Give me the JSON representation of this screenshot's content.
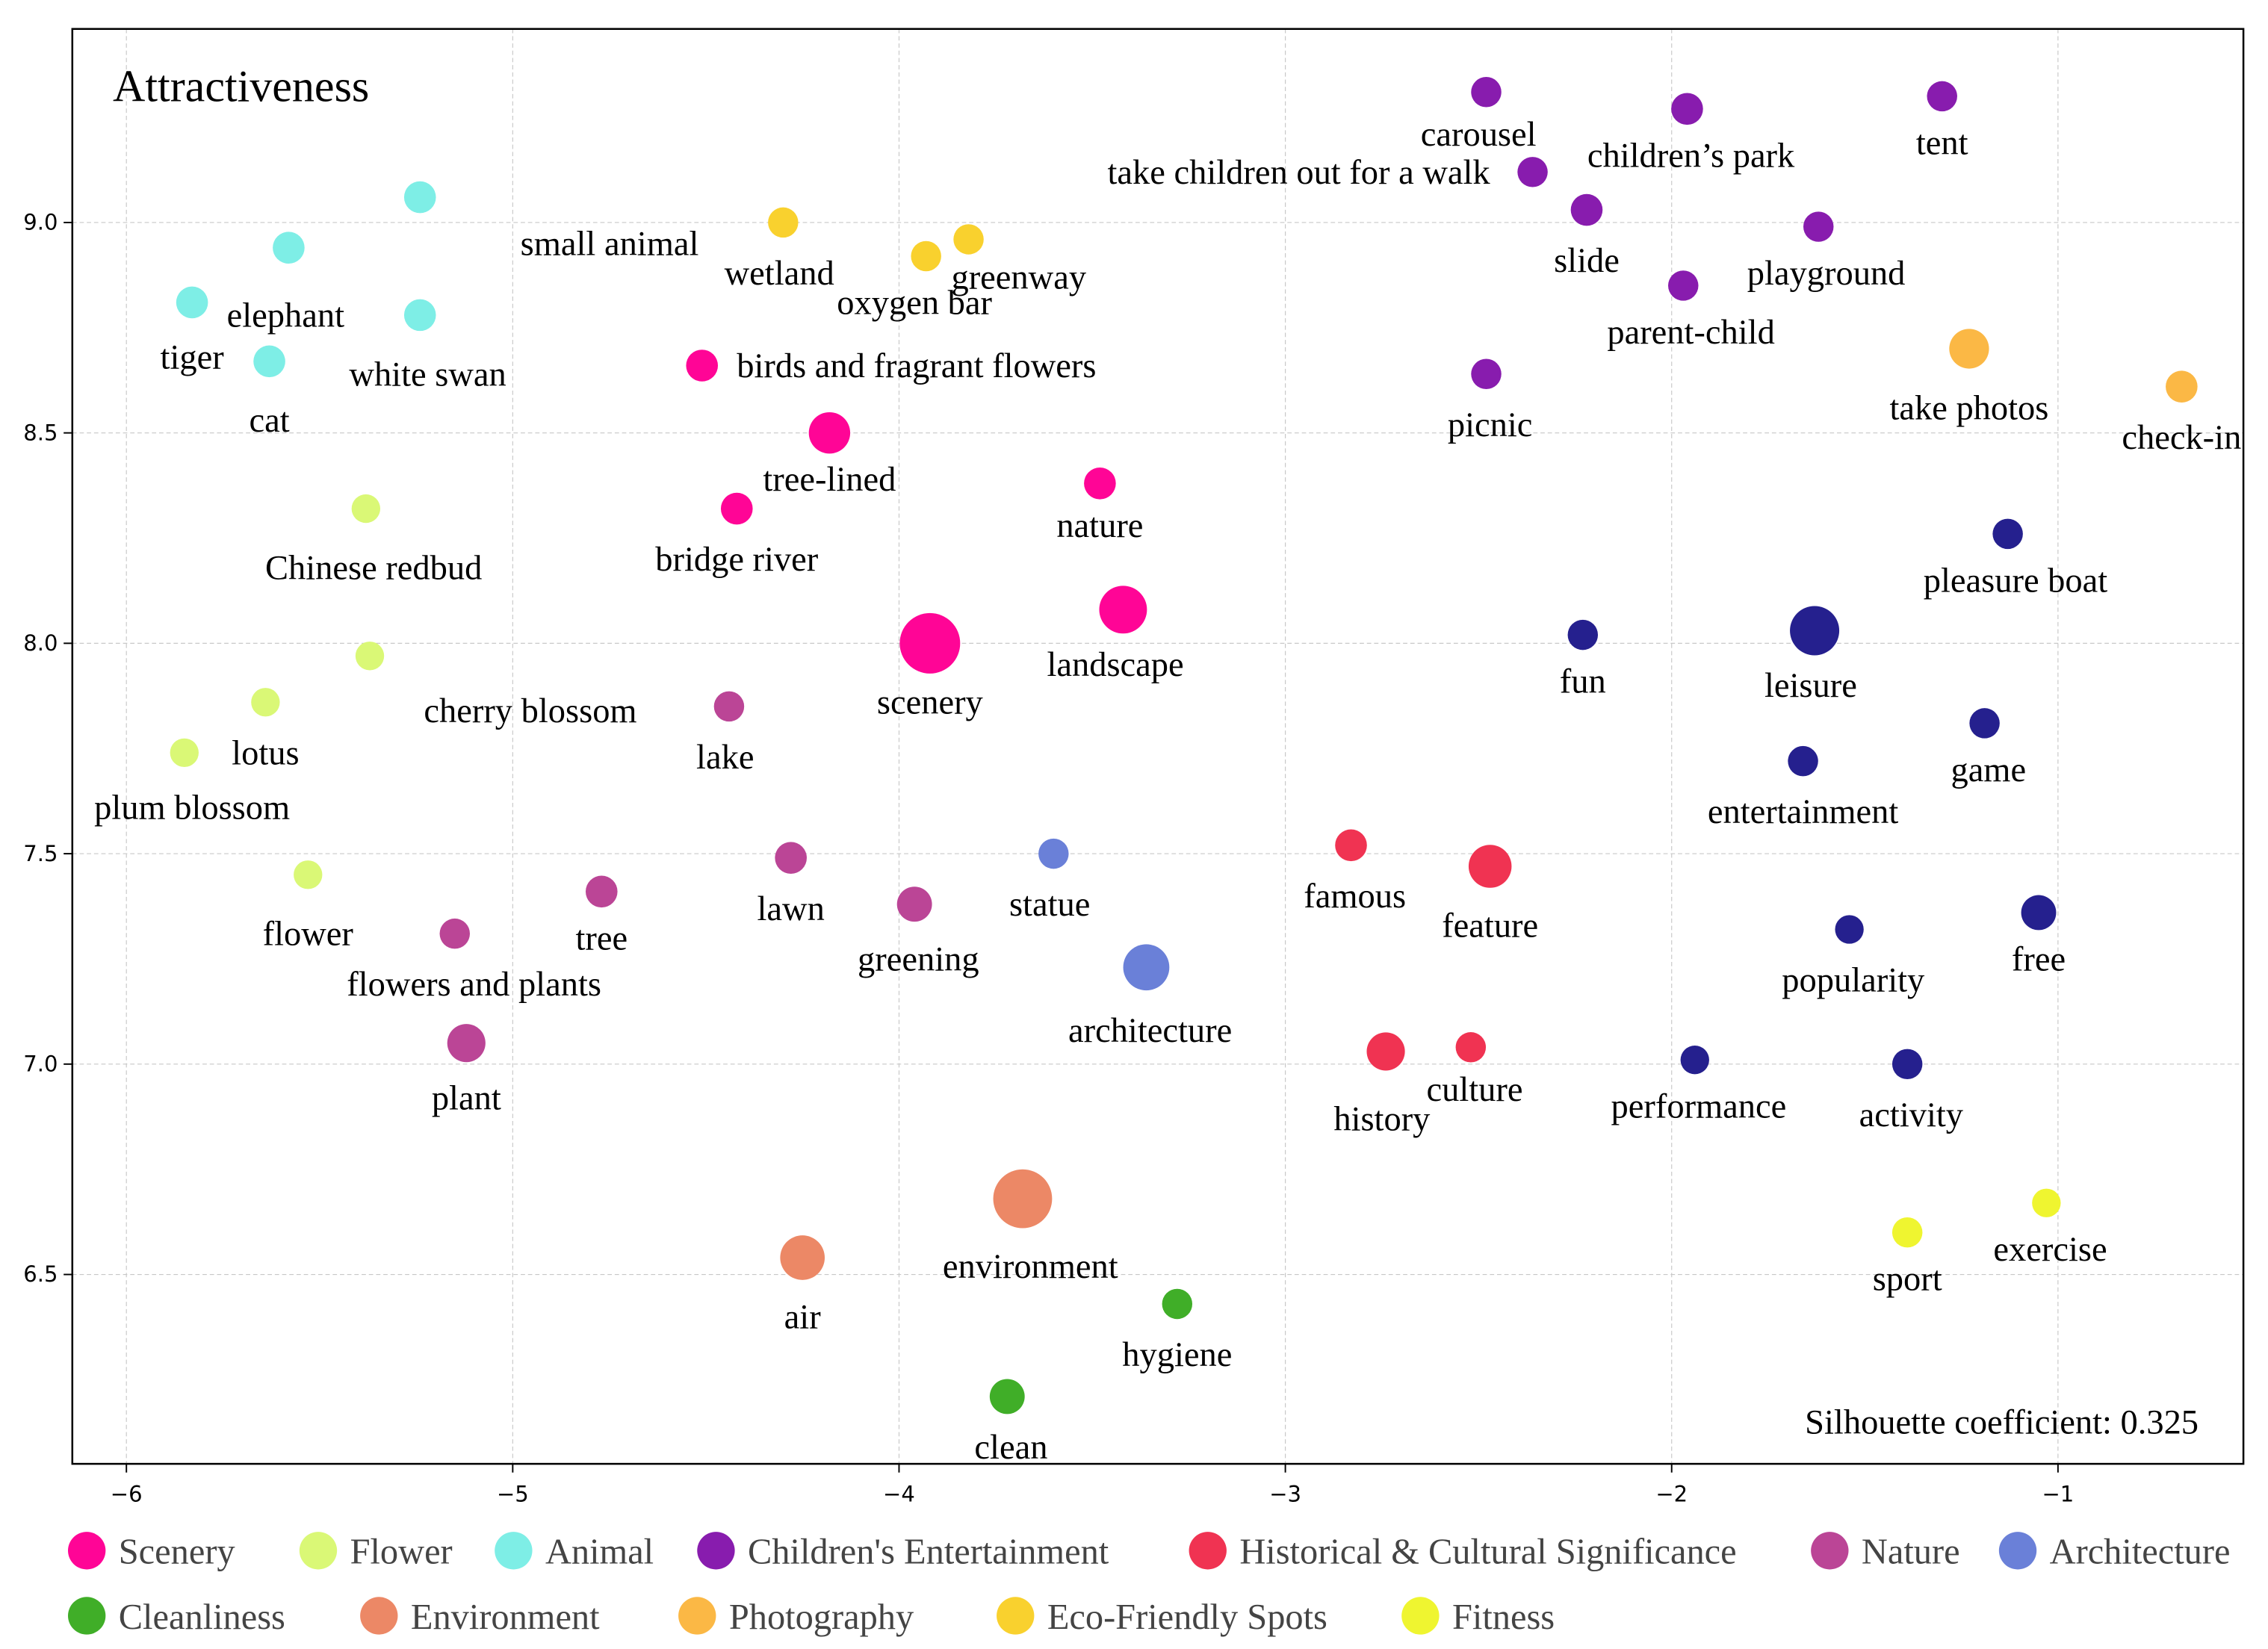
{
  "chart_data": {
    "type": "scatter",
    "title": "Attractiveness",
    "annotation": "Silhouette coefficient: 0.325",
    "xlabel": "",
    "ylabel": "",
    "xlim": [
      -6.14,
      -0.52
    ],
    "ylim": [
      6.05,
      9.46
    ],
    "xticks": [
      -6,
      -5,
      -4,
      -3,
      -2,
      -1
    ],
    "xtick_labels": [
      "−6",
      "−5",
      "−4",
      "−3",
      "−2",
      "−1"
    ],
    "yticks": [
      6.5,
      7.0,
      7.5,
      8.0,
      8.5,
      9.0
    ],
    "ytick_labels": [
      "6.5",
      "7.0",
      "7.5",
      "8.0",
      "8.5",
      "9.0"
    ],
    "grid": true,
    "legend_position": "bottom",
    "categories": [
      {
        "name": "Scenery",
        "color": "#FF0596"
      },
      {
        "name": "Flower",
        "color": "#DAF876"
      },
      {
        "name": "Animal",
        "color": "#7EEEE6"
      },
      {
        "name": "Children's Entertainment",
        "color": "#881CAE"
      },
      {
        "name": "Historical & Cultural Significance",
        "color": "#F03352"
      },
      {
        "name": "Nature",
        "color": "#BB4596"
      },
      {
        "name": "Architecture",
        "color": "#6A80D8"
      },
      {
        "name": "Cleanliness",
        "color": "#40AE28"
      },
      {
        "name": "Environment",
        "color": "#EC8866"
      },
      {
        "name": "Photography",
        "color": "#FBB845"
      },
      {
        "name": "Eco-Friendly Spots",
        "color": "#F9D12E"
      },
      {
        "name": "Fitness",
        "color": "#EFF530"
      },
      {
        "name": "",
        "color": "#25208E"
      }
    ],
    "points": [
      {
        "label": "small animal",
        "category": "Animal",
        "x": -5.24,
        "y": 9.06,
        "size": 1,
        "lx": 0.26,
        "ly": -0.11,
        "anchor": "start"
      },
      {
        "label": "elephant",
        "category": "Animal",
        "x": -5.58,
        "y": 8.94,
        "size": 1,
        "lx": -0.16,
        "ly": -0.16,
        "anchor": "start"
      },
      {
        "label": "tiger",
        "category": "Animal",
        "x": -5.83,
        "y": 8.81,
        "size": 1,
        "lx": 0,
        "ly": -0.13,
        "anchor": "middle"
      },
      {
        "label": "white swan",
        "category": "Animal",
        "x": -5.24,
        "y": 8.78,
        "size": 1,
        "lx": 0.02,
        "ly": -0.14,
        "anchor": "middle"
      },
      {
        "label": "cat",
        "category": "Animal",
        "x": -5.63,
        "y": 8.67,
        "size": 1,
        "lx": 0,
        "ly": -0.14,
        "anchor": "middle"
      },
      {
        "label": "Chinese redbud",
        "category": "Flower",
        "x": -5.38,
        "y": 8.32,
        "size": 0.9,
        "lx": 0.02,
        "ly": -0.14,
        "anchor": "middle"
      },
      {
        "label": "cherry blossom",
        "category": "Flower",
        "x": -5.37,
        "y": 7.97,
        "size": 0.9,
        "lx": 0.14,
        "ly": -0.13,
        "anchor": "start"
      },
      {
        "label": "lotus",
        "category": "Flower",
        "x": -5.64,
        "y": 7.86,
        "size": 0.9,
        "lx": 0,
        "ly": -0.12,
        "anchor": "middle"
      },
      {
        "label": "plum blossom",
        "category": "Flower",
        "x": -5.85,
        "y": 7.74,
        "size": 0.9,
        "lx": 0.02,
        "ly": -0.13,
        "anchor": "middle"
      },
      {
        "label": "flower",
        "category": "Flower",
        "x": -5.53,
        "y": 7.45,
        "size": 0.9,
        "lx": 0,
        "ly": -0.14,
        "anchor": "middle"
      },
      {
        "label": "birds and fragrant flowers",
        "category": "Scenery",
        "x": -4.51,
        "y": 8.66,
        "size": 1,
        "lx": 0.09,
        "ly": 0,
        "anchor": "start"
      },
      {
        "label": "tree-lined",
        "category": "Scenery",
        "x": -4.18,
        "y": 8.5,
        "size": 1.3,
        "lx": 0,
        "ly": -0.11,
        "anchor": "middle"
      },
      {
        "label": "bridge river",
        "category": "Scenery",
        "x": -4.42,
        "y": 8.32,
        "size": 1,
        "lx": 0,
        "ly": -0.12,
        "anchor": "middle"
      },
      {
        "label": "nature",
        "category": "Scenery",
        "x": -3.48,
        "y": 8.38,
        "size": 1,
        "lx": 0,
        "ly": -0.1,
        "anchor": "middle"
      },
      {
        "label": "scenery",
        "category": "Scenery",
        "x": -3.92,
        "y": 8.0,
        "size": 1.9,
        "lx": 0,
        "ly": -0.14,
        "anchor": "middle"
      },
      {
        "label": "landscape",
        "category": "Scenery",
        "x": -3.42,
        "y": 8.08,
        "size": 1.5,
        "lx": -0.02,
        "ly": -0.13,
        "anchor": "middle"
      },
      {
        "label": "wetland",
        "category": "Eco-Friendly Spots",
        "x": -4.3,
        "y": 9.0,
        "size": 0.95,
        "lx": -0.01,
        "ly": -0.12,
        "anchor": "middle"
      },
      {
        "label": "oxygen bar",
        "category": "Eco-Friendly Spots",
        "x": -3.93,
        "y": 8.92,
        "size": 0.95,
        "lx": -0.03,
        "ly": -0.11,
        "anchor": "middle"
      },
      {
        "label": "greenway",
        "category": "Eco-Friendly Spots",
        "x": -3.82,
        "y": 8.96,
        "size": 0.95,
        "lx": 0.13,
        "ly": -0.09,
        "anchor": "middle"
      },
      {
        "label": "lake",
        "category": "Nature",
        "x": -4.44,
        "y": 7.85,
        "size": 0.95,
        "lx": -0.01,
        "ly": -0.12,
        "anchor": "middle"
      },
      {
        "label": "lawn",
        "category": "Nature",
        "x": -4.28,
        "y": 7.49,
        "size": 1,
        "lx": 0,
        "ly": -0.12,
        "anchor": "middle"
      },
      {
        "label": "greening",
        "category": "Nature",
        "x": -3.96,
        "y": 7.38,
        "size": 1.1,
        "lx": 0.01,
        "ly": -0.13,
        "anchor": "middle"
      },
      {
        "label": "tree",
        "category": "Nature",
        "x": -4.77,
        "y": 7.41,
        "size": 1,
        "lx": 0,
        "ly": -0.11,
        "anchor": "middle"
      },
      {
        "label": "flowers and plants",
        "category": "Nature",
        "x": -5.15,
        "y": 7.31,
        "size": 0.95,
        "lx": 0.05,
        "ly": -0.12,
        "anchor": "middle"
      },
      {
        "label": "plant",
        "category": "Nature",
        "x": -5.12,
        "y": 7.05,
        "size": 1.2,
        "lx": 0,
        "ly": -0.13,
        "anchor": "middle"
      },
      {
        "label": "statue",
        "category": "Architecture",
        "x": -3.6,
        "y": 7.5,
        "size": 0.95,
        "lx": -0.01,
        "ly": -0.12,
        "anchor": "middle"
      },
      {
        "label": "architecture",
        "category": "Architecture",
        "x": -3.36,
        "y": 7.23,
        "size": 1.45,
        "lx": 0.01,
        "ly": -0.15,
        "anchor": "middle"
      },
      {
        "label": "famous",
        "category": "Historical & Cultural Significance",
        "x": -2.83,
        "y": 7.52,
        "size": 1,
        "lx": 0.01,
        "ly": -0.12,
        "anchor": "middle"
      },
      {
        "label": "feature",
        "category": "Historical & Cultural Significance",
        "x": -2.47,
        "y": 7.47,
        "size": 1.35,
        "lx": 0,
        "ly": -0.14,
        "anchor": "middle"
      },
      {
        "label": "history",
        "category": "Historical & Cultural Significance",
        "x": -2.74,
        "y": 7.03,
        "size": 1.2,
        "lx": -0.01,
        "ly": -0.16,
        "anchor": "middle"
      },
      {
        "label": "culture",
        "category": "Historical & Cultural Significance",
        "x": -2.52,
        "y": 7.04,
        "size": 0.95,
        "lx": 0.01,
        "ly": -0.1,
        "anchor": "middle"
      },
      {
        "label": "carousel",
        "category": "Children's Entertainment",
        "x": -2.48,
        "y": 9.31,
        "size": 0.95,
        "lx": -0.02,
        "ly": -0.1,
        "anchor": "middle"
      },
      {
        "label": "children’s park",
        "category": "Children's Entertainment",
        "x": -1.96,
        "y": 9.27,
        "size": 1,
        "lx": 0.01,
        "ly": -0.11,
        "anchor": "middle"
      },
      {
        "label": "take children out for a walk",
        "category": "Children's Entertainment",
        "x": -2.36,
        "y": 9.12,
        "size": 0.95,
        "lx": -0.11,
        "ly": 0,
        "anchor": "end"
      },
      {
        "label": "slide",
        "category": "Children's Entertainment",
        "x": -2.22,
        "y": 9.03,
        "size": 1,
        "lx": 0,
        "ly": -0.12,
        "anchor": "middle"
      },
      {
        "label": "tent",
        "category": "Children's Entertainment",
        "x": -1.3,
        "y": 9.3,
        "size": 0.95,
        "lx": 0,
        "ly": -0.11,
        "anchor": "middle"
      },
      {
        "label": "playground",
        "category": "Children's Entertainment",
        "x": -1.62,
        "y": 8.99,
        "size": 0.95,
        "lx": 0.02,
        "ly": -0.11,
        "anchor": "middle"
      },
      {
        "label": "parent-child",
        "category": "Children's Entertainment",
        "x": -1.97,
        "y": 8.85,
        "size": 0.95,
        "lx": 0.02,
        "ly": -0.11,
        "anchor": "middle"
      },
      {
        "label": "picnic",
        "category": "Children's Entertainment",
        "x": -2.48,
        "y": 8.64,
        "size": 0.95,
        "lx": 0.01,
        "ly": -0.12,
        "anchor": "middle"
      },
      {
        "label": "take photos",
        "category": "Photography",
        "x": -1.23,
        "y": 8.7,
        "size": 1.25,
        "lx": 0,
        "ly": -0.14,
        "anchor": "middle"
      },
      {
        "label": "check-in",
        "category": "Photography",
        "x": -0.68,
        "y": 8.61,
        "size": 1,
        "lx": 0,
        "ly": -0.12,
        "anchor": "middle"
      },
      {
        "label": "pleasure boat",
        "category": "",
        "x": -1.13,
        "y": 8.26,
        "size": 0.95,
        "lx": 0.02,
        "ly": -0.11,
        "anchor": "middle"
      },
      {
        "label": "fun",
        "category": "",
        "x": -2.23,
        "y": 8.02,
        "size": 0.95,
        "lx": 0,
        "ly": -0.11,
        "anchor": "middle"
      },
      {
        "label": "leisure",
        "category": "",
        "x": -1.63,
        "y": 8.03,
        "size": 1.55,
        "lx": -0.01,
        "ly": -0.13,
        "anchor": "middle"
      },
      {
        "label": "game",
        "category": "",
        "x": -1.19,
        "y": 7.81,
        "size": 0.95,
        "lx": 0.01,
        "ly": -0.11,
        "anchor": "middle"
      },
      {
        "label": "entertainment",
        "category": "",
        "x": -1.66,
        "y": 7.72,
        "size": 0.95,
        "lx": 0,
        "ly": -0.12,
        "anchor": "middle"
      },
      {
        "label": "popularity",
        "category": "",
        "x": -1.54,
        "y": 7.32,
        "size": 0.9,
        "lx": 0.01,
        "ly": -0.12,
        "anchor": "middle"
      },
      {
        "label": "free",
        "category": "",
        "x": -1.05,
        "y": 7.36,
        "size": 1.1,
        "lx": 0,
        "ly": -0.11,
        "anchor": "middle"
      },
      {
        "label": "performance",
        "category": "",
        "x": -1.94,
        "y": 7.01,
        "size": 0.9,
        "lx": 0.01,
        "ly": -0.11,
        "anchor": "middle"
      },
      {
        "label": "activity",
        "category": "",
        "x": -1.39,
        "y": 7.0,
        "size": 0.95,
        "lx": 0.01,
        "ly": -0.12,
        "anchor": "middle"
      },
      {
        "label": "exercise",
        "category": "Fitness",
        "x": -1.03,
        "y": 6.67,
        "size": 0.9,
        "lx": 0.01,
        "ly": -0.11,
        "anchor": "middle"
      },
      {
        "label": "sport",
        "category": "Fitness",
        "x": -1.39,
        "y": 6.6,
        "size": 0.95,
        "lx": 0,
        "ly": -0.11,
        "anchor": "middle"
      },
      {
        "label": "environment",
        "category": "Environment",
        "x": -3.68,
        "y": 6.68,
        "size": 1.85,
        "lx": 0.02,
        "ly": -0.16,
        "anchor": "middle"
      },
      {
        "label": "air",
        "category": "Environment",
        "x": -4.25,
        "y": 6.54,
        "size": 1.4,
        "lx": 0,
        "ly": -0.14,
        "anchor": "middle"
      },
      {
        "label": "hygiene",
        "category": "Cleanliness",
        "x": -3.28,
        "y": 6.43,
        "size": 0.95,
        "lx": 0,
        "ly": -0.12,
        "anchor": "middle"
      },
      {
        "label": "clean",
        "category": "Cleanliness",
        "x": -3.72,
        "y": 6.21,
        "size": 1.1,
        "lx": 0.01,
        "ly": -0.12,
        "anchor": "middle"
      }
    ]
  },
  "legend": {
    "row1": [
      "Scenery",
      "Flower",
      "Animal",
      "Children's Entertainment",
      "Historical & Cultural Significance",
      "Nature",
      "Architecture"
    ],
    "row2": [
      "Cleanliness",
      "Environment",
      "Photography",
      "Eco-Friendly Spots",
      "Fitness"
    ]
  }
}
